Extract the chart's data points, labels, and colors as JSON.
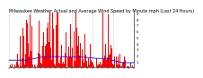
{
  "title": "Milwaukee Weather Actual and Average Wind Speed by Minute mph (Last 24 Hours)",
  "bar_color": "#ff0000",
  "line_color": "#0000ff",
  "background_color": "#ffffff",
  "n_points": 1440,
  "title_fontsize": 3.5,
  "tick_fontsize": 2.8,
  "grid_color": "#999999",
  "ylim": [
    0,
    9
  ],
  "yticks": [
    1,
    2,
    3,
    4,
    5,
    6,
    7,
    8,
    9
  ]
}
